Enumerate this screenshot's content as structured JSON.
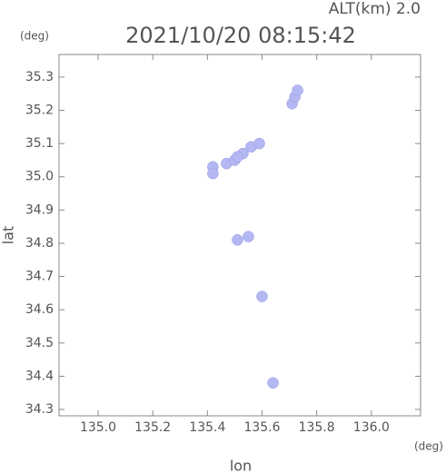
{
  "chart_data": {
    "type": "scatter",
    "title": "2021/10/20 08:15:42",
    "subtitle": "ALT(km) 2.0",
    "x_label": "lon",
    "y_label": "lat",
    "x_unit": "(deg)",
    "y_unit": "(deg)",
    "xlim": [
      134.857,
      136.18
    ],
    "ylim": [
      34.281,
      35.368
    ],
    "xticks": [
      {
        "value": 135,
        "label": "135.0"
      },
      135.2,
      135.4,
      135.6,
      135.8,
      {
        "value": 136,
        "label": "136.0"
      }
    ],
    "yticks": [
      34.3,
      34.4,
      34.5,
      34.6,
      34.7,
      34.8,
      34.9,
      {
        "value": 35,
        "label": "35.0"
      },
      35.1,
      35.2,
      35.3
    ],
    "color": "#b4b8f2",
    "x": [
      135.47,
      135.5,
      135.53,
      135.56,
      135.59,
      135.51,
      135.71,
      135.72,
      135.73,
      135.42,
      135.42,
      135.51,
      135.55,
      135.6,
      135.64
    ],
    "y": [
      35.04,
      35.05,
      35.07,
      35.09,
      35.1,
      35.06,
      35.22,
      35.24,
      35.26,
      35.03,
      35.01,
      34.81,
      34.82,
      34.64,
      34.38
    ]
  }
}
